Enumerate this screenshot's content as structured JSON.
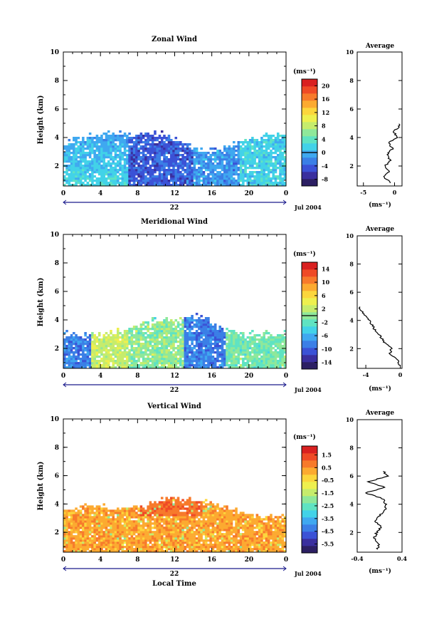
{
  "colors": {
    "line": "#000000",
    "timebar": "#1a1a8c",
    "colormap": [
      "#2c1f63",
      "#3a2f9e",
      "#3b52d6",
      "#3b7fe6",
      "#3fa8f0",
      "#42d2e8",
      "#5fe3c2",
      "#8fe89a",
      "#c6ec6c",
      "#eef04e",
      "#fcd63c",
      "#fcaa30",
      "#f77a2b",
      "#ef4a26",
      "#d92020"
    ]
  },
  "chart_data": [
    {
      "id": "zonal",
      "type": "heatmap",
      "title": "Zonal Wind",
      "ylabel": "Height (km)",
      "xlabel": "",
      "ylim": [
        0.6,
        10
      ],
      "yticks": [
        "2",
        "4",
        "6",
        "8",
        "10"
      ],
      "xlim": [
        0,
        24
      ],
      "xticks": [
        "0",
        "4",
        "8",
        "12",
        "16",
        "20",
        "0"
      ],
      "day_label": "22",
      "date_label": "Jul 2004",
      "colorbar": {
        "unit": "(ms⁻¹)",
        "labels": [
          "-8",
          "-4",
          "0",
          "4",
          "8",
          "12",
          "16",
          "20"
        ],
        "range": [
          -10,
          22
        ],
        "zero_line": 0
      },
      "profile": {
        "title": "Average",
        "xlabel": "(ms⁻¹)",
        "xlim": [
          -6,
          1.2
        ],
        "xticks": [
          "-5",
          "0"
        ],
        "yticks": [
          "2",
          "4",
          "6",
          "8",
          "10"
        ],
        "heights": [
          0.8,
          1.2,
          1.6,
          2.0,
          2.4,
          2.8,
          3.2,
          3.6,
          4.0,
          4.4,
          4.8,
          5.0
        ],
        "values": [
          -0.5,
          -1.8,
          -0.8,
          -1.5,
          -0.6,
          -1.2,
          -0.3,
          -1.0,
          0.4,
          -0.2,
          0.8,
          0.5
        ]
      }
    },
    {
      "id": "meridional",
      "type": "heatmap",
      "title": "Meridional Wind",
      "ylabel": "Height (km)",
      "xlabel": "",
      "ylim": [
        0.6,
        10
      ],
      "yticks": [
        "2",
        "4",
        "6",
        "8",
        "10"
      ],
      "xlim": [
        0,
        24
      ],
      "xticks": [
        "0",
        "4",
        "8",
        "12",
        "16",
        "20",
        "0"
      ],
      "day_label": "22",
      "date_label": "Jul 2004",
      "colorbar": {
        "unit": "(ms⁻¹)",
        "labels": [
          "-14",
          "-10",
          "-6",
          "-2",
          "2",
          "6",
          "10",
          "14"
        ],
        "range": [
          -16,
          16
        ],
        "zero_line": 0
      },
      "profile": {
        "title": "Average",
        "xlabel": "(ms⁻¹)",
        "xlim": [
          -5,
          0.2
        ],
        "xticks": [
          "-4",
          "0"
        ],
        "yticks": [
          "2",
          "4",
          "6",
          "8",
          "10"
        ],
        "heights": [
          0.8,
          1.2,
          1.6,
          2.0,
          2.4,
          2.8,
          3.2,
          3.6,
          4.0,
          4.4,
          4.8,
          5.0
        ],
        "values": [
          0.0,
          -0.4,
          -1.2,
          -1.0,
          -1.8,
          -2.2,
          -2.8,
          -3.2,
          -3.6,
          -4.2,
          -4.6,
          -4.8
        ]
      }
    },
    {
      "id": "vertical",
      "type": "heatmap",
      "title": "Vertical Wind",
      "ylabel": "Height (km)",
      "xlabel": "Local Time",
      "ylim": [
        0.6,
        10
      ],
      "yticks": [
        "2",
        "4",
        "6",
        "8",
        "10"
      ],
      "xlim": [
        0,
        24
      ],
      "xticks": [
        "0",
        "4",
        "8",
        "12",
        "16",
        "20",
        "0"
      ],
      "day_label": "22",
      "date_label": "Jul 2004",
      "colorbar": {
        "unit": "(ms⁻¹)",
        "labels": [
          "-5.5",
          "-4.5",
          "-3.5",
          "-2.5",
          "-1.5",
          "-0.5",
          "0.5",
          "1.5"
        ],
        "range": [
          -6.2,
          2.2
        ],
        "zero_line": null
      },
      "profile": {
        "title": "Average",
        "xlabel": "(ms⁻¹)",
        "xlim": [
          -0.4,
          0.4
        ],
        "xticks": [
          "-0.4",
          "0.4"
        ],
        "yticks": [
          "2",
          "4",
          "6",
          "8",
          "10"
        ],
        "heights": [
          0.8,
          1.2,
          1.6,
          2.0,
          2.4,
          2.8,
          3.2,
          3.6,
          4.0,
          4.4,
          4.8,
          5.2,
          5.6,
          6.0,
          6.4
        ],
        "values": [
          -0.05,
          0.0,
          -0.1,
          -0.05,
          0.02,
          -0.08,
          0.0,
          0.1,
          0.12,
          0.05,
          -0.25,
          0.1,
          -0.2,
          0.15,
          0.05
        ]
      }
    }
  ]
}
